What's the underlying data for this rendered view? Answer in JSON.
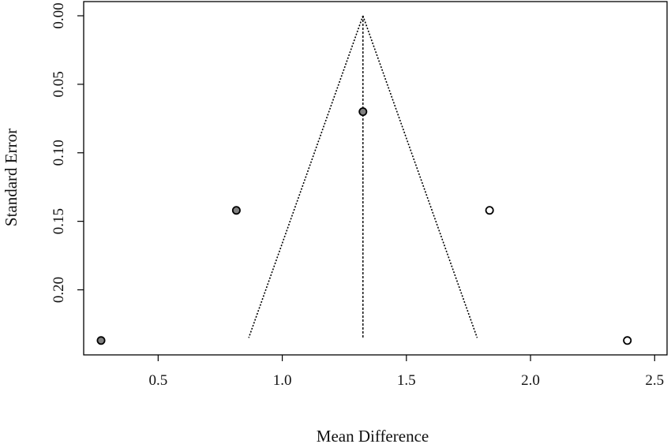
{
  "chart_data": {
    "type": "scatter",
    "subtype": "funnel",
    "title": "",
    "xlabel": "Mean Difference",
    "ylabel": "Standard Error",
    "xlim": [
      0.2,
      2.55
    ],
    "ylim": [
      0,
      0.24
    ],
    "y_reversed": true,
    "x_ticks": [
      0.5,
      1.0,
      1.5,
      2.0,
      2.5
    ],
    "x_tick_labels": [
      "0.5",
      "1.0",
      "1.5",
      "2.0",
      "2.5"
    ],
    "y_ticks": [
      0.0,
      0.05,
      0.1,
      0.15,
      0.2
    ],
    "y_tick_labels": [
      "0.00",
      "0.05",
      "0.10",
      "0.15",
      "0.20"
    ],
    "grid": false,
    "pooled_estimate": 1.325,
    "funnel": {
      "apex": [
        1.325,
        0.0
      ],
      "bottom_left": [
        0.865,
        0.235
      ],
      "bottom_right": [
        1.785,
        0.235
      ],
      "line_style": "dotted"
    },
    "series": [
      {
        "marker": "filled-gray",
        "color": "#808080",
        "points": [
          {
            "x": 0.27,
            "y": 0.237
          },
          {
            "x": 0.815,
            "y": 0.142
          },
          {
            "x": 1.325,
            "y": 0.07
          }
        ]
      },
      {
        "marker": "open",
        "color": "#ffffff",
        "points": [
          {
            "x": 1.835,
            "y": 0.142
          },
          {
            "x": 2.39,
            "y": 0.237
          }
        ]
      }
    ]
  }
}
